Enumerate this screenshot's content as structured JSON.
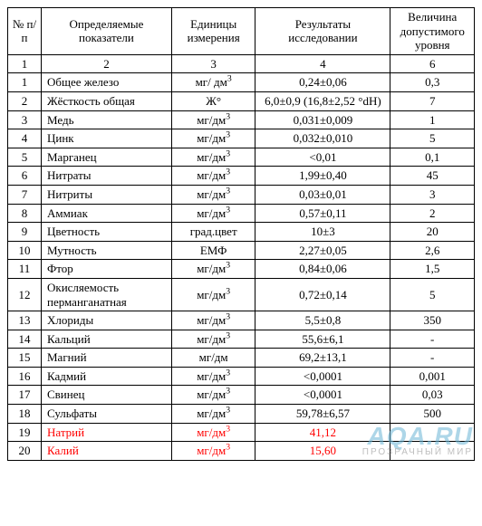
{
  "table": {
    "columns": [
      {
        "key": "num",
        "label": "№ п/п",
        "align": "center"
      },
      {
        "key": "param",
        "label": "Определяемые показатели",
        "align": "left"
      },
      {
        "key": "unit",
        "label": "Единицы измерения",
        "align": "center"
      },
      {
        "key": "result",
        "label": "Результаты исследовании",
        "align": "center"
      },
      {
        "key": "limit",
        "label": "Величина допустимого уровня",
        "align": "center"
      }
    ],
    "subheader": [
      "1",
      "2",
      "3",
      "4",
      "6"
    ],
    "rows": [
      {
        "num": "1",
        "param": "Общее железо",
        "unit": "мг/ дм³",
        "result": "0,24±0,06",
        "limit": "0,3",
        "red": false
      },
      {
        "num": "2",
        "param": "Жёсткость общая",
        "unit": "Ж°",
        "result": "6,0±0,9 (16,8±2,52 °dH)",
        "limit": "7",
        "red": false
      },
      {
        "num": "3",
        "param": "Медь",
        "unit": "мг/дм³",
        "result": "0,031±0,009",
        "limit": "1",
        "red": false
      },
      {
        "num": "4",
        "param": "Цинк",
        "unit": "мг/дм³",
        "result": "0,032±0,010",
        "limit": "5",
        "red": false
      },
      {
        "num": "5",
        "param": "Марганец",
        "unit": "мг/дм³",
        "result": "<0,01",
        "limit": "0,1",
        "red": false
      },
      {
        "num": "6",
        "param": "Нитраты",
        "unit": "мг/дм³",
        "result": "1,99±0,40",
        "limit": "45",
        "red": false
      },
      {
        "num": "7",
        "param": "Нитриты",
        "unit": "мг/дм³",
        "result": "0,03±0,01",
        "limit": "3",
        "red": false
      },
      {
        "num": "8",
        "param": "Аммиак",
        "unit": "мг/дм³",
        "result": "0,57±0,11",
        "limit": "2",
        "red": false
      },
      {
        "num": "9",
        "param": "Цветность",
        "unit": "град.цвет",
        "result": "10±3",
        "limit": "20",
        "red": false
      },
      {
        "num": "10",
        "param": "Мутность",
        "unit": "ЕМФ",
        "result": "2,27±0,05",
        "limit": "2,6",
        "red": false
      },
      {
        "num": "11",
        "param": "Фтор",
        "unit": "мг/дм³",
        "result": "0,84±0,06",
        "limit": "1,5",
        "red": false
      },
      {
        "num": "12",
        "param": "Окисляемость перманганатная",
        "unit": "мг/дм³",
        "result": "0,72±0,14",
        "limit": "5",
        "red": false
      },
      {
        "num": "13",
        "param": "Хлориды",
        "unit": "мг/дм³",
        "result": "5,5±0,8",
        "limit": "350",
        "red": false
      },
      {
        "num": "14",
        "param": "Кальций",
        "unit": "мг/дм³",
        "result": "55,6±6,1",
        "limit": "-",
        "red": false
      },
      {
        "num": "15",
        "param": "Магний",
        "unit": "мг/дм",
        "result": "69,2±13,1",
        "limit": "-",
        "red": false
      },
      {
        "num": "16",
        "param": "Кадмий",
        "unit": "мг/дм³",
        "result": "<0,0001",
        "limit": "0,001",
        "red": false
      },
      {
        "num": "17",
        "param": "Свинец",
        "unit": "мг/дм³",
        "result": "<0,0001",
        "limit": "0,03",
        "red": false
      },
      {
        "num": "18",
        "param": "Сульфаты",
        "unit": "мг/дм³",
        "result": "59,78±6,57",
        "limit": "500",
        "red": false
      },
      {
        "num": "19",
        "param": "Натрий",
        "unit": "мг/дм³",
        "result": "41,12",
        "limit": "",
        "red": true
      },
      {
        "num": "20",
        "param": "Калий",
        "unit": "мг/дм³",
        "result": "15,60",
        "limit": "",
        "red": true
      }
    ],
    "red_color": "#ff0000",
    "border_color": "#000000",
    "background_color": "#ffffff",
    "font_family": "Times New Roman",
    "font_size_pt": 10
  },
  "watermark": {
    "main": "AQA.RU",
    "sub": "ПРОЗРАЧНЫЙ МИР",
    "main_color": "#6bb6d6",
    "sub_color": "#8a8a8a"
  }
}
